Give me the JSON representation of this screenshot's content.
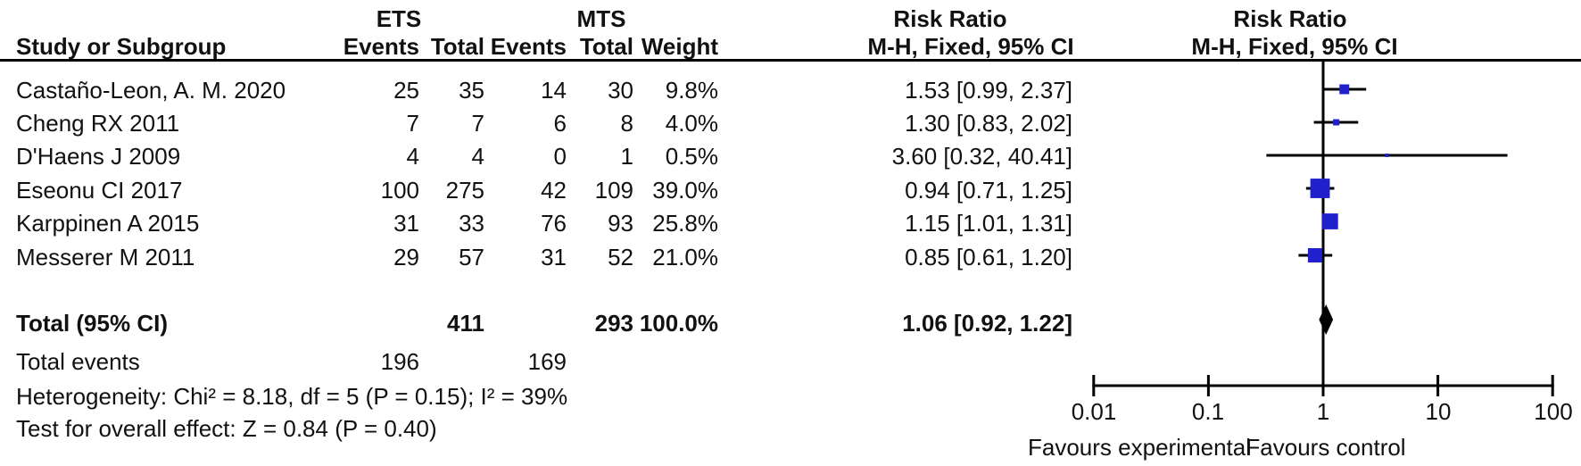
{
  "header": {
    "group1": "ETS",
    "group2": "MTS",
    "risk_ratio": "Risk Ratio",
    "method": "M-H, Fixed, 95% CI",
    "col_study": "Study or Subgroup",
    "col_events": "Events",
    "col_total": "Total",
    "col_weight": "Weight"
  },
  "rows": [
    {
      "study": "Castaño-Leon, A. M. 2020",
      "e1": "25",
      "t1": "35",
      "e2": "14",
      "t2": "30",
      "weight": "9.8%",
      "rr_text": "1.53 [0.99, 2.37]"
    },
    {
      "study": "Cheng RX 2011",
      "e1": "7",
      "t1": "7",
      "e2": "6",
      "t2": "8",
      "weight": "4.0%",
      "rr_text": "1.30 [0.83, 2.02]"
    },
    {
      "study": "D'Haens J 2009",
      "e1": "4",
      "t1": "4",
      "e2": "0",
      "t2": "1",
      "weight": "0.5%",
      "rr_text": "3.60 [0.32, 40.41]"
    },
    {
      "study": "Eseonu CI 2017",
      "e1": "100",
      "t1": "275",
      "e2": "42",
      "t2": "109",
      "weight": "39.0%",
      "rr_text": "0.94 [0.71, 1.25]"
    },
    {
      "study": "Karppinen A 2015",
      "e1": "31",
      "t1": "33",
      "e2": "76",
      "t2": "93",
      "weight": "25.8%",
      "rr_text": "1.15 [1.01, 1.31]"
    },
    {
      "study": "Messerer M 2011",
      "e1": "29",
      "t1": "57",
      "e2": "31",
      "t2": "52",
      "weight": "21.0%",
      "rr_text": "0.85 [0.61, 1.20]"
    }
  ],
  "total_row": {
    "label": "Total (95% CI)",
    "t1": "411",
    "t2": "293",
    "weight": "100.0%",
    "rr_text": "1.06 [0.92, 1.22]"
  },
  "total_events": {
    "label": "Total events",
    "e1": "196",
    "e2": "169"
  },
  "heterogeneity": "Heterogeneity: Chi² = 8.18, df = 5 (P = 0.15); I² = 39%",
  "overall_effect": "Test for overall effect: Z = 0.84 (P = 0.40)",
  "axis": {
    "ticks": [
      "0.01",
      "0.1",
      "1",
      "10",
      "100"
    ],
    "left_label": "Favours experimental",
    "right_label": "Favours control"
  },
  "chart_data": {
    "type": "forest",
    "x_scale": "log10",
    "x_range": [
      0.01,
      100
    ],
    "x_ticks": [
      0.01,
      0.1,
      1,
      10,
      100
    ],
    "effect_measure": "Risk Ratio (M-H, Fixed, 95% CI)",
    "marker_color": "#2020cc",
    "diamond_color": "#000000",
    "studies": [
      {
        "name": "Castaño-Leon, A. M. 2020",
        "rr": 1.53,
        "ci_low": 0.99,
        "ci_high": 2.37,
        "weight_pct": 9.8
      },
      {
        "name": "Cheng RX 2011",
        "rr": 1.3,
        "ci_low": 0.83,
        "ci_high": 2.02,
        "weight_pct": 4.0
      },
      {
        "name": "D'Haens J 2009",
        "rr": 3.6,
        "ci_low": 0.32,
        "ci_high": 40.41,
        "weight_pct": 0.5
      },
      {
        "name": "Eseonu CI 2017",
        "rr": 0.94,
        "ci_low": 0.71,
        "ci_high": 1.25,
        "weight_pct": 39.0
      },
      {
        "name": "Karppinen A 2015",
        "rr": 1.15,
        "ci_low": 1.01,
        "ci_high": 1.31,
        "weight_pct": 25.8
      },
      {
        "name": "Messerer M 2011",
        "rr": 0.85,
        "ci_low": 0.61,
        "ci_high": 1.2,
        "weight_pct": 21.0
      }
    ],
    "total": {
      "rr": 1.06,
      "ci_low": 0.92,
      "ci_high": 1.22
    },
    "xlabel_left": "Favours experimental",
    "xlabel_right": "Favours control"
  }
}
